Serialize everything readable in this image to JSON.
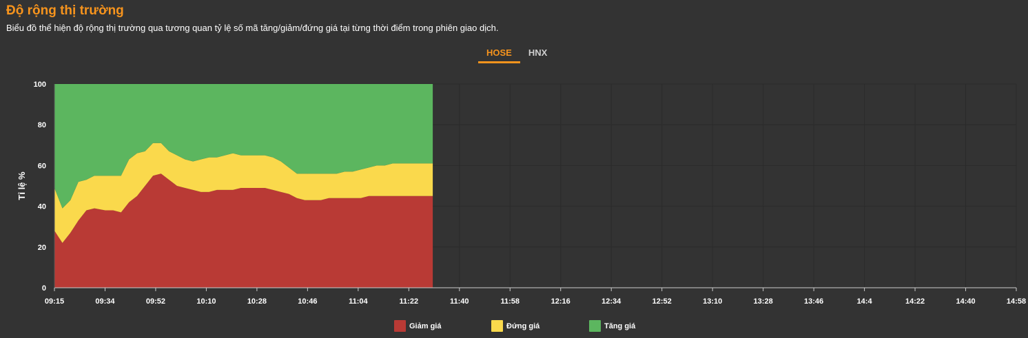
{
  "header": {
    "title": "Độ rộng thị trường",
    "subtitle": "Biểu đồ thể hiện độ rộng thị trường qua tương quan tỷ lệ số mã tăng/giảm/đứng giá tại từng thời điểm trong phiên giao dịch."
  },
  "tabs": [
    {
      "label": "HOSE",
      "active": true
    },
    {
      "label": "HNX",
      "active": false
    }
  ],
  "colors": {
    "giam": "#b93a35",
    "dung": "#fad94c",
    "tang": "#5cb65f",
    "accent": "#f7941d",
    "background": "#333333"
  },
  "chart_data": {
    "type": "area",
    "stacked": true,
    "ylabel": "Tỉ lệ %",
    "ylim": [
      0,
      100
    ],
    "yticks": [
      "0",
      "20",
      "40",
      "60",
      "80",
      "100"
    ],
    "xticks": [
      "09:15",
      "09:34",
      "09:52",
      "10:10",
      "10:28",
      "10:46",
      "11:04",
      "11:22",
      "11:40",
      "11:58",
      "12:16",
      "12:34",
      "12:52",
      "13:10",
      "13:28",
      "13:46",
      "14:4",
      "14:22",
      "14:40",
      "14:58"
    ],
    "x": [
      "09:15",
      "09:18",
      "09:21",
      "09:24",
      "09:27",
      "09:30",
      "09:34",
      "09:37",
      "09:40",
      "09:43",
      "09:46",
      "09:49",
      "09:52",
      "09:55",
      "09:58",
      "10:01",
      "10:04",
      "10:07",
      "10:10",
      "10:13",
      "10:16",
      "10:19",
      "10:22",
      "10:25",
      "10:28",
      "10:31",
      "10:34",
      "10:37",
      "10:40",
      "10:43",
      "10:46",
      "10:49",
      "10:52",
      "10:55",
      "10:58",
      "11:01",
      "11:04",
      "11:07",
      "11:10",
      "11:13",
      "11:16",
      "11:19",
      "11:22",
      "11:25",
      "11:28",
      "11:31",
      "11:34",
      "11:37"
    ],
    "series": [
      {
        "name": "Giảm giá",
        "values": [
          28,
          22,
          27,
          33,
          38,
          39,
          38,
          38,
          37,
          42,
          45,
          50,
          55,
          56,
          53,
          50,
          49,
          48,
          47,
          47,
          48,
          48,
          48,
          49,
          49,
          49,
          49,
          48,
          47,
          46,
          44,
          43,
          43,
          43,
          44,
          44,
          44,
          44,
          44,
          45,
          45,
          45,
          45,
          45,
          45,
          45,
          45,
          45
        ]
      },
      {
        "name": "Đứng giá",
        "values": [
          21,
          17,
          16,
          19,
          15,
          16,
          17,
          17,
          18,
          21,
          21,
          17,
          16,
          15,
          14,
          15,
          14,
          14,
          16,
          17,
          16,
          17,
          18,
          16,
          16,
          16,
          16,
          16,
          15,
          13,
          12,
          13,
          13,
          13,
          12,
          12,
          13,
          13,
          14,
          14,
          15,
          15,
          16,
          16,
          16,
          16,
          16,
          16
        ]
      },
      {
        "name": "Tăng giá",
        "values": [
          51,
          61,
          57,
          48,
          47,
          45,
          45,
          45,
          45,
          37,
          34,
          33,
          29,
          29,
          33,
          35,
          37,
          38,
          37,
          36,
          36,
          35,
          34,
          35,
          35,
          35,
          35,
          36,
          38,
          41,
          44,
          44,
          44,
          44,
          44,
          44,
          43,
          43,
          42,
          41,
          40,
          40,
          39,
          39,
          39,
          39,
          39,
          39
        ]
      }
    ],
    "legend": [
      "Giảm giá",
      "Đứng giá",
      "Tăng giá"
    ],
    "legend_position": "bottom",
    "grid": true
  }
}
